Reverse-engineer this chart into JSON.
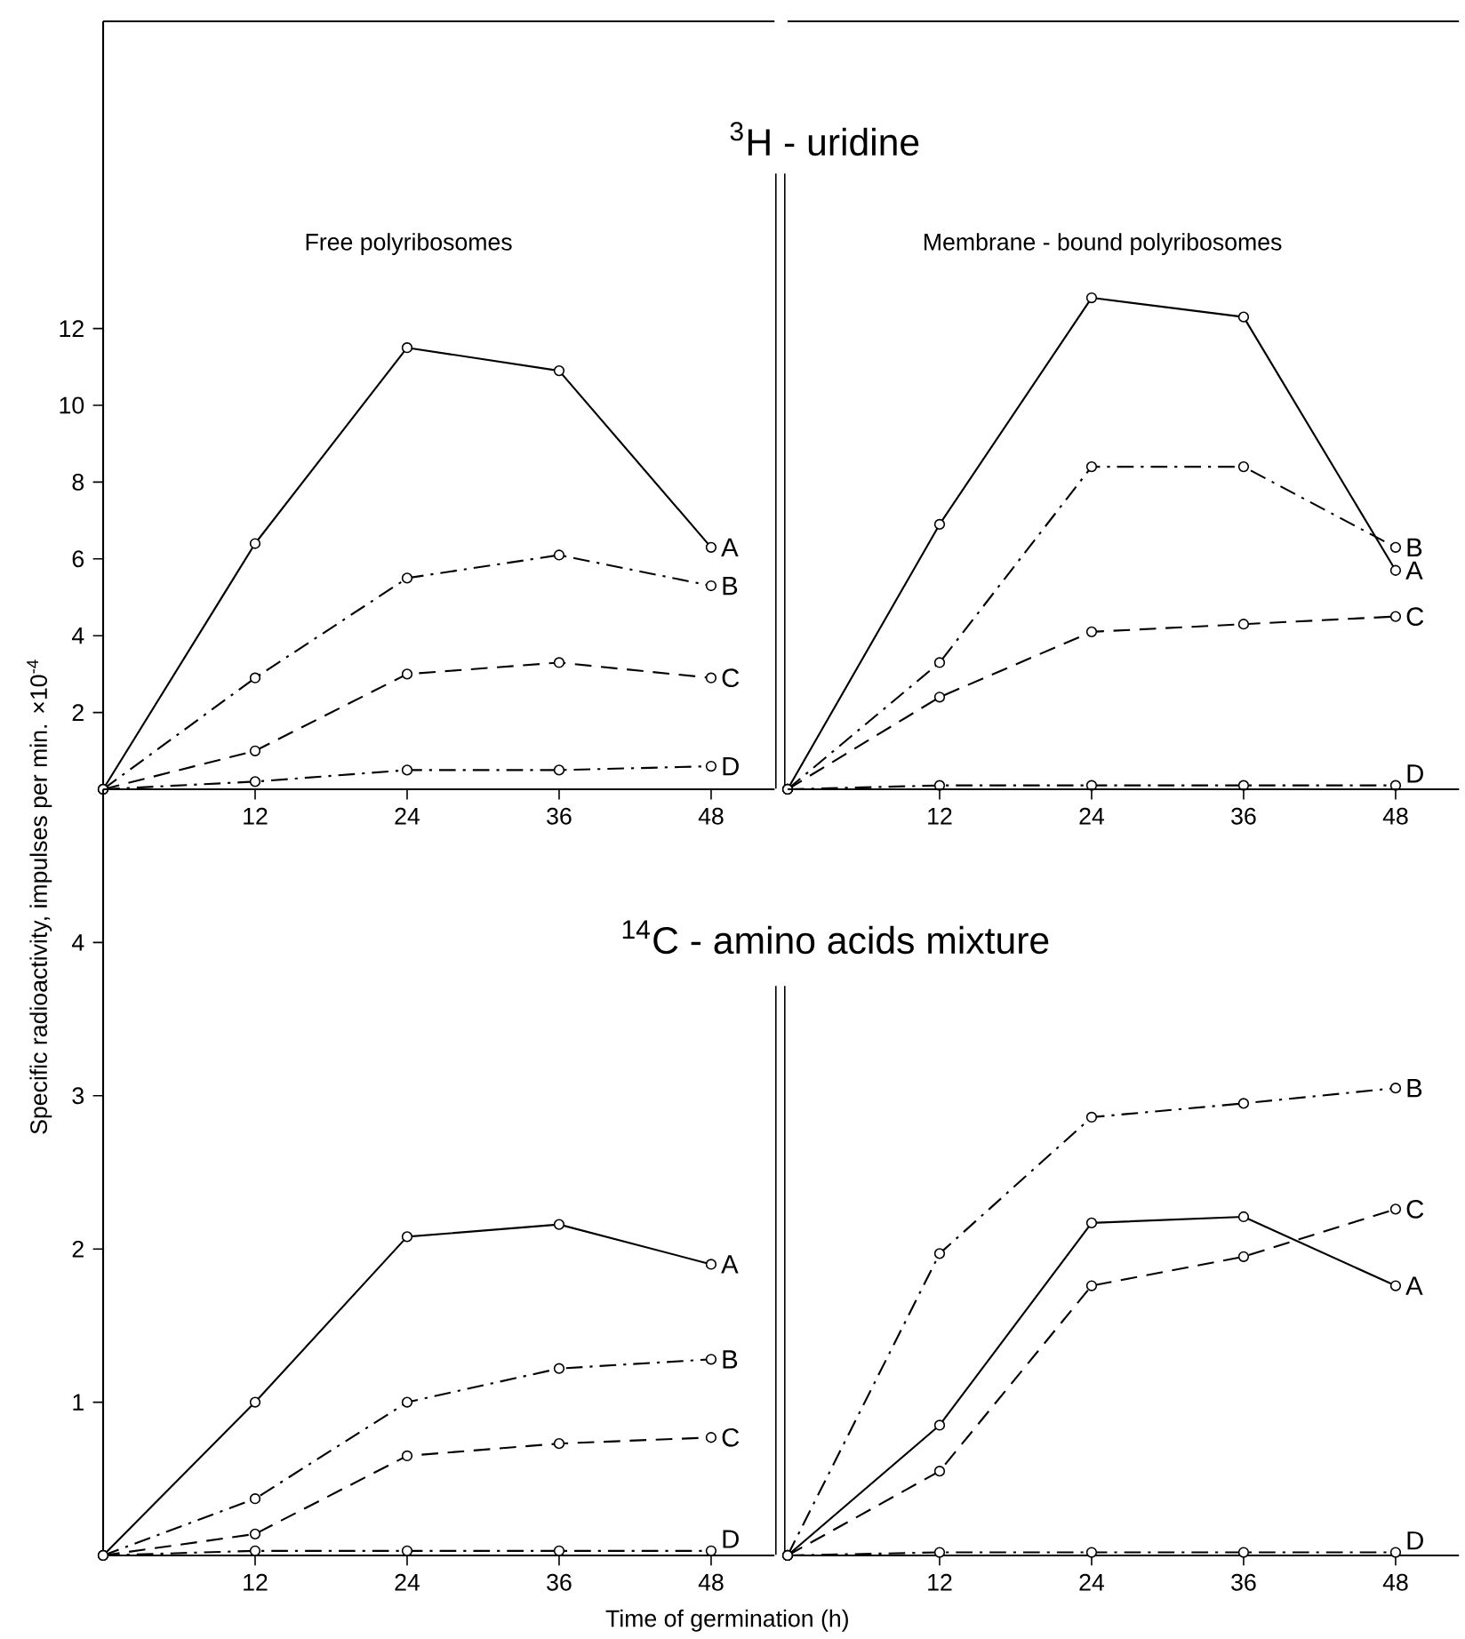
{
  "chart_data": [
    {
      "type": "line",
      "title": "$^{3}$H - uridine",
      "subtitle": "Free polyribosomes",
      "marker": "circle",
      "xlim": [
        0,
        53
      ],
      "ylim": [
        0,
        20
      ],
      "xticks": [
        12,
        24,
        36,
        48
      ],
      "yticks": [
        2,
        4,
        6,
        8,
        10,
        12
      ],
      "series": [
        {
          "name": "A",
          "color": "#000000",
          "line_style": "solid",
          "x": [
            0,
            12,
            24,
            36,
            48
          ],
          "values": [
            0,
            6.4,
            11.5,
            10.9,
            6.3
          ]
        },
        {
          "name": "B",
          "color": "#000000",
          "line_style": "dashdot",
          "x": [
            0,
            12,
            24,
            36,
            48
          ],
          "values": [
            0,
            2.9,
            5.5,
            6.1,
            5.3
          ]
        },
        {
          "name": "C",
          "color": "#000000",
          "line_style": "dashed",
          "x": [
            0,
            12,
            24,
            36,
            48
          ],
          "values": [
            0,
            1.0,
            3.0,
            3.3,
            2.9
          ]
        },
        {
          "name": "D",
          "color": "#000000",
          "line_style": "dashdot",
          "x": [
            0,
            12,
            24,
            36,
            48
          ],
          "values": [
            0,
            0.2,
            0.5,
            0.5,
            0.6
          ]
        }
      ]
    },
    {
      "type": "line",
      "subtitle": "Membrane - bound polyribosomes",
      "marker": "circle",
      "xlim": [
        0,
        53
      ],
      "ylim": [
        0,
        20
      ],
      "xticks": [
        12,
        24,
        36,
        48
      ],
      "tick_labels": "x",
      "series": [
        {
          "name": "A",
          "color": "#000000",
          "line_style": "solid",
          "x": [
            0,
            12,
            24,
            36,
            48
          ],
          "values": [
            0,
            6.9,
            12.8,
            12.3,
            5.7
          ]
        },
        {
          "name": "B",
          "color": "#000000",
          "line_style": "dashdot",
          "x": [
            0,
            12,
            24,
            36,
            48
          ],
          "values": [
            0,
            3.3,
            8.4,
            8.4,
            6.3
          ]
        },
        {
          "name": "C",
          "color": "#000000",
          "line_style": "dashed",
          "x": [
            0,
            12,
            24,
            36,
            48
          ],
          "values": [
            0,
            2.4,
            4.1,
            4.3,
            4.5
          ]
        },
        {
          "name": "D",
          "color": "#000000",
          "line_style": "dashdot",
          "x": [
            0,
            12,
            24,
            36,
            48
          ],
          "values": [
            0,
            0.1,
            0.1,
            0.1,
            0.1
          ]
        }
      ]
    },
    {
      "type": "line",
      "title": "$^{14}$C - amino acids mixture",
      "xlabel": "Time of germination (h)",
      "ylabel": "Specific radioactivity, impulses per min. ×10$^{-4}$",
      "marker": "circle",
      "xlim": [
        0,
        53
      ],
      "ylim": [
        0,
        5
      ],
      "xticks": [
        12,
        24,
        36,
        48
      ],
      "yticks": [
        1,
        2,
        3,
        4
      ],
      "series": [
        {
          "name": "A",
          "color": "#000000",
          "line_style": "solid",
          "x": [
            0,
            12,
            24,
            36,
            48
          ],
          "values": [
            0,
            1.0,
            2.08,
            2.16,
            1.9
          ]
        },
        {
          "name": "B",
          "color": "#000000",
          "line_style": "dashdot",
          "x": [
            0,
            12,
            24,
            36,
            48
          ],
          "values": [
            0,
            0.37,
            1.0,
            1.22,
            1.28
          ]
        },
        {
          "name": "C",
          "color": "#000000",
          "line_style": "dashed",
          "x": [
            0,
            12,
            24,
            36,
            48
          ],
          "values": [
            0,
            0.14,
            0.65,
            0.73,
            0.77
          ]
        },
        {
          "name": "D",
          "color": "#000000",
          "line_style": "dashdot",
          "x": [
            0,
            12,
            24,
            36,
            48
          ],
          "values": [
            0,
            0.03,
            0.03,
            0.03,
            0.03
          ]
        }
      ]
    },
    {
      "type": "line",
      "marker": "circle",
      "xlim": [
        0,
        53
      ],
      "ylim": [
        0,
        5
      ],
      "xticks": [
        12,
        24,
        36,
        48
      ],
      "tick_labels": "x",
      "series": [
        {
          "name": "A",
          "color": "#000000",
          "line_style": "solid",
          "x": [
            0,
            12,
            24,
            36,
            48
          ],
          "values": [
            0,
            0.85,
            2.17,
            2.21,
            1.76
          ]
        },
        {
          "name": "B",
          "color": "#000000",
          "line_style": "dashdot",
          "x": [
            0,
            12,
            24,
            36,
            48
          ],
          "values": [
            0,
            1.97,
            2.86,
            2.95,
            3.05
          ]
        },
        {
          "name": "C",
          "color": "#000000",
          "line_style": "dashed",
          "x": [
            0,
            12,
            24,
            36,
            48
          ],
          "values": [
            0,
            0.55,
            1.76,
            1.95,
            2.26
          ]
        },
        {
          "name": "D",
          "color": "#000000",
          "line_style": "dashdot",
          "x": [
            0,
            12,
            24,
            36,
            48
          ],
          "values": [
            0,
            0.02,
            0.02,
            0.02,
            0.02
          ]
        }
      ]
    }
  ]
}
